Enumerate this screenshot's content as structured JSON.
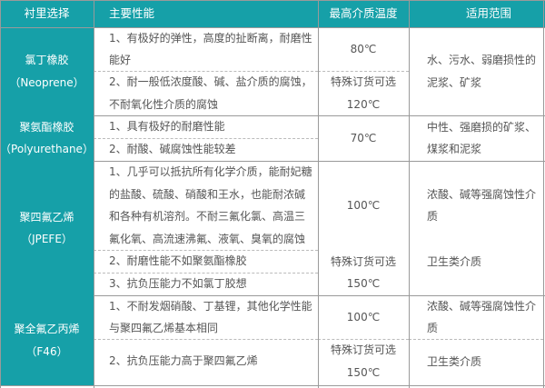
{
  "colors": {
    "header_bg": "#16a0a8",
    "header_text": "#ffffff",
    "border": "#9a9a9a"
  },
  "headers": [
    "衬里选择",
    "主要性能",
    "最高介质温度",
    "适用范围"
  ],
  "rows": [
    {
      "lining": [
        "氯丁橡胶",
        "（Neoprene）"
      ],
      "props": [
        [
          "1、有极好的弹性，高度的扯断离，耐磨性",
          "能好"
        ],
        [
          "2、耐一般低浓度酸、碱、盐介质的腐蚀，",
          "不耐氧化性介质的腐蚀"
        ]
      ],
      "temp": [
        [
          "80℃"
        ],
        [
          "特殊订货可选",
          "120℃"
        ]
      ],
      "scope": [
        [
          "水、污水、弱磨损性的",
          "泥浆、矿浆"
        ]
      ]
    },
    {
      "lining": [
        "聚氨酯橡胶",
        "（Polyurethane）"
      ],
      "props": [
        [
          "1、具有极好的耐磨性能"
        ],
        [
          "2、耐酸、碱腐蚀性能较差"
        ]
      ],
      "temp": [
        [
          "70℃"
        ]
      ],
      "scope": [
        [
          "中性、强磨损的矿浆、",
          "煤浆和泥浆"
        ]
      ]
    },
    {
      "lining": [
        "聚四氟乙烯",
        "（JPEFE）"
      ],
      "props": [
        [
          "1、几乎可以抵抗所有化学介质，能耐妃糖",
          "的盐酸、硫酸、硝酸和王水，也能耐浓碱",
          "和各种有机溶剂。不耐三氟化氯、高温三",
          "氟化氧、高流速沸氟、液氧、臭氧的腐蚀"
        ],
        [
          "2、耐磨性能不如聚氨酯橡胶"
        ],
        [
          "3、抗负压能力不如氯丁胶想"
        ]
      ],
      "temp": [
        [
          "100℃"
        ],
        [
          "特殊订货可选",
          "150℃"
        ]
      ],
      "scope": [
        [
          "浓酸、碱等强腐蚀性介",
          "质"
        ],
        [
          "卫生类介质"
        ]
      ]
    },
    {
      "lining": [
        "聚全氟乙丙烯",
        "（F46）"
      ],
      "props": [
        [
          "1、不耐发烟硝酸、丁基锂，其他化学性能",
          "与聚四氟乙烯基本相同"
        ],
        [
          "2、抗负压能力高于聚四氟乙烯"
        ]
      ],
      "temp": [
        [
          "100℃"
        ],
        [
          "特殊订货可选",
          "150℃"
        ]
      ],
      "scope": [
        [
          "浓酸、碱等强腐蚀性介",
          "质"
        ],
        [
          "卫生类介质"
        ]
      ]
    }
  ]
}
